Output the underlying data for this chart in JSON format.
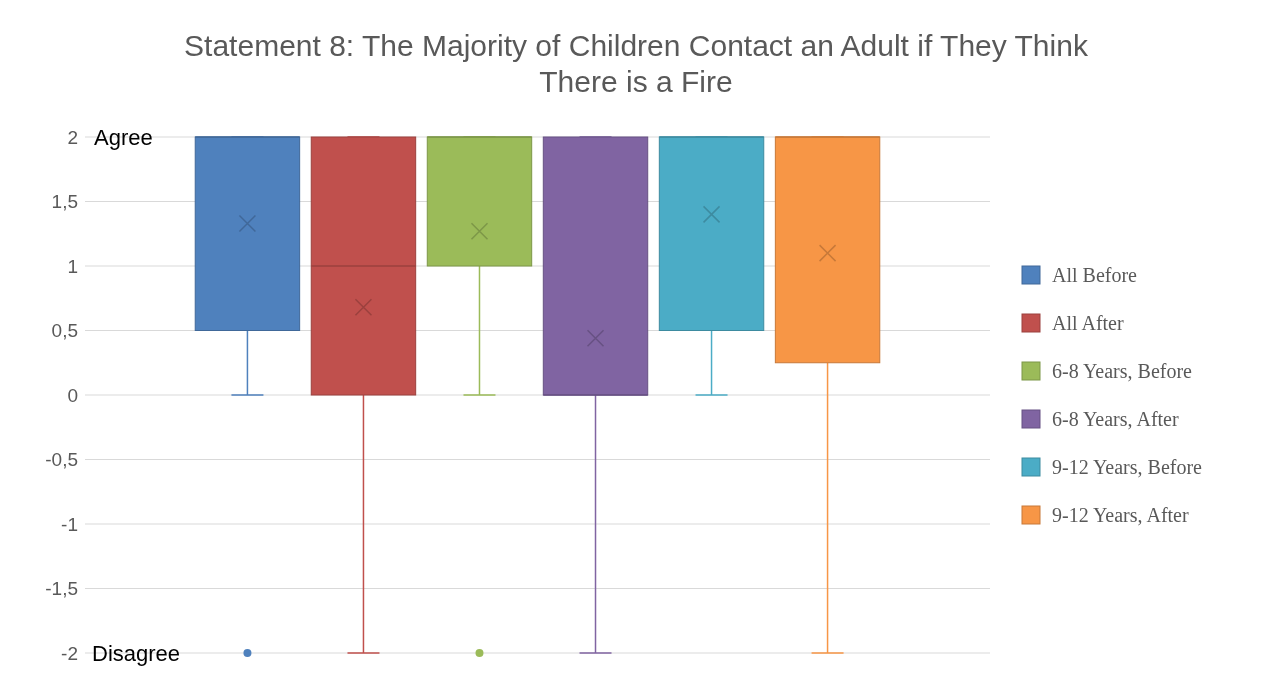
{
  "chart_data": {
    "type": "box",
    "title": "Statement 8: The Majority of Children Contact an Adult if They Think There is a Fire",
    "categories": [
      null
    ],
    "ylim": [
      -2,
      2
    ],
    "yticks": [
      {
        "value": -2,
        "label": "-2"
      },
      {
        "value": -1.5,
        "label": "-1,5"
      },
      {
        "value": -1,
        "label": "-1"
      },
      {
        "value": -0.5,
        "label": "-0,5"
      },
      0,
      {
        "value": 0.5,
        "label": "0,5"
      },
      1,
      {
        "value": 1.5,
        "label": "1,5"
      },
      2
    ],
    "grid": "y",
    "legend": "right",
    "marker": "cross",
    "annotations": [
      "Agree",
      "Disagree"
    ],
    "series": [
      {
        "name": "All Before",
        "color": "#4f81bd",
        "boxes": [
          {
            "low": 0,
            "q1": 0.5,
            "median": 2,
            "q3": 2,
            "high": 2,
            "mean": 1.33,
            "outliers": [
              -2
            ]
          }
        ]
      },
      {
        "name": "All After",
        "color": "#c0504d",
        "boxes": [
          {
            "low": -2,
            "q1": 0,
            "median": 1,
            "q3": 2,
            "high": 2,
            "mean": 0.68
          }
        ]
      },
      {
        "name": "6-8 Years, Before",
        "color": "#9bbb59",
        "boxes": [
          {
            "low": 0,
            "q1": 1,
            "median": 2,
            "q3": 2,
            "high": 2,
            "mean": 1.27,
            "outliers": [
              -2
            ]
          }
        ]
      },
      {
        "name": "6-8 Years, After",
        "color": "#8064a2",
        "boxes": [
          {
            "low": -2,
            "q1": 0,
            "median": 0,
            "q3": 2,
            "high": 2,
            "mean": 0.44
          }
        ]
      },
      {
        "name": "9-12 Years, Before",
        "color": "#4bacc6",
        "boxes": [
          {
            "low": 0,
            "q1": 0.5,
            "median": 2,
            "q3": 2,
            "high": 2,
            "mean": 1.4
          }
        ]
      },
      {
        "name": "9-12 Years, After",
        "color": "#f79646",
        "boxes": [
          {
            "low": -2,
            "q1": 0.25,
            "median": 2,
            "q3": 2,
            "high": 2,
            "mean": 1.1
          }
        ]
      }
    ]
  }
}
